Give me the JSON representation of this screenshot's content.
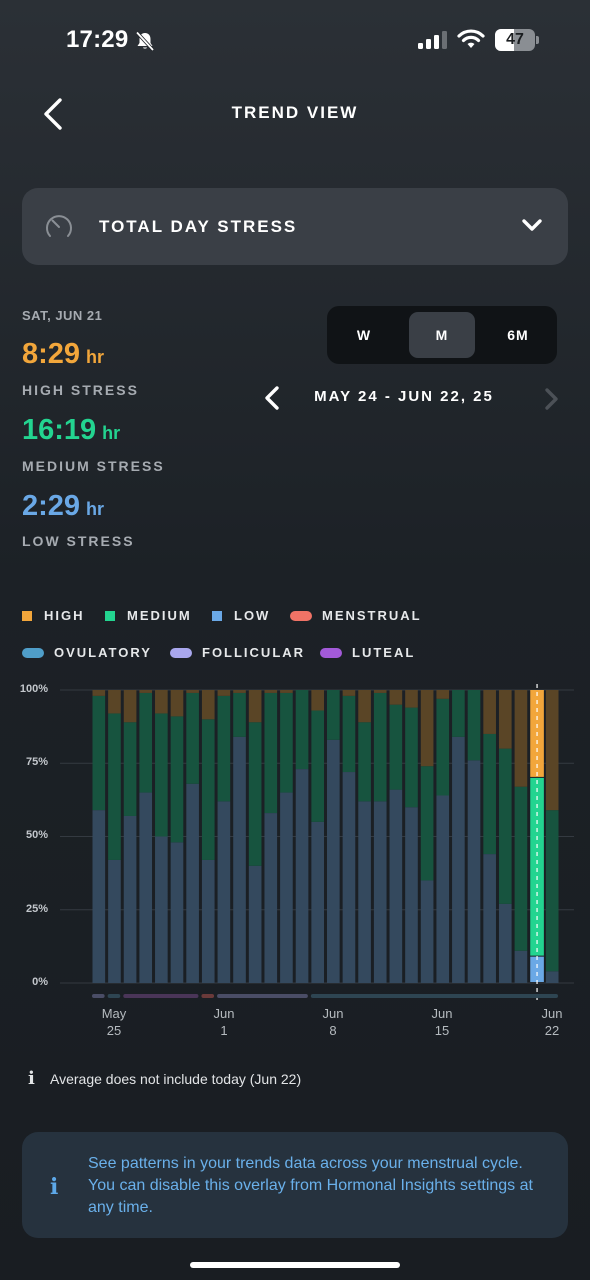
{
  "status_bar": {
    "time": "17:29",
    "battery": "47"
  },
  "header": {
    "title": "TREND VIEW"
  },
  "metric_selector": {
    "label": "TOTAL DAY STRESS"
  },
  "summary": {
    "date": "SAT, JUN 21",
    "high": {
      "value": "8:29",
      "unit": "hr",
      "label": "HIGH STRESS",
      "color": "#f2a63b"
    },
    "medium": {
      "value": "16:19",
      "unit": "hr",
      "label": "MEDIUM STRESS",
      "color": "#23d490"
    },
    "low": {
      "value": "2:29",
      "unit": "hr",
      "label": "LOW STRESS",
      "color": "#6aa8e6"
    }
  },
  "period": {
    "options": [
      "W",
      "M",
      "6M"
    ],
    "selected": "M",
    "range_label": "MAY 24 - JUN 22, 25"
  },
  "legend": {
    "stress": [
      {
        "label": "HIGH",
        "color": "#f2a63b"
      },
      {
        "label": "MEDIUM",
        "color": "#23d490"
      },
      {
        "label": "LOW",
        "color": "#6aa8e6"
      },
      {
        "label": "MENSTRUAL",
        "color": "#f07366"
      }
    ],
    "cycle": [
      {
        "label": "OVULATORY",
        "color": "#4f9ec9"
      },
      {
        "label": "FOLLICULAR",
        "color": "#a9a7ee"
      },
      {
        "label": "LUTEAL",
        "color": "#a35ad9"
      }
    ]
  },
  "chart_data": {
    "type": "bar",
    "stacked": true,
    "y_tick_labels": [
      "100%",
      "75%",
      "50%",
      "25%",
      "0%"
    ],
    "ylim": [
      0,
      100
    ],
    "x_tick_labels": [
      {
        "month": "May",
        "day": "25"
      },
      {
        "month": "Jun",
        "day": "1"
      },
      {
        "month": "Jun",
        "day": "8"
      },
      {
        "month": "Jun",
        "day": "15"
      },
      {
        "month": "Jun",
        "day": "22"
      }
    ],
    "categories": [
      "May 24",
      "May 25",
      "May 26",
      "May 27",
      "May 28",
      "May 29",
      "May 30",
      "May 31",
      "Jun 1",
      "Jun 2",
      "Jun 3",
      "Jun 4",
      "Jun 5",
      "Jun 6",
      "Jun 7",
      "Jun 8",
      "Jun 9",
      "Jun 10",
      "Jun 11",
      "Jun 12",
      "Jun 13",
      "Jun 14",
      "Jun 15",
      "Jun 16",
      "Jun 17",
      "Jun 18",
      "Jun 19",
      "Jun 20",
      "Jun 21",
      "Jun 22"
    ],
    "series": [
      {
        "name": "LOW",
        "values": [
          59,
          42,
          57,
          65,
          50,
          48,
          68,
          42,
          62,
          84,
          40,
          58,
          65,
          73,
          55,
          83,
          72,
          62,
          62,
          66,
          60,
          35,
          64,
          84,
          76,
          44,
          27,
          11,
          9,
          4
        ]
      },
      {
        "name": "MEDIUM",
        "values": [
          39,
          50,
          32,
          34,
          42,
          43,
          31,
          48,
          36,
          15,
          49,
          41,
          34,
          27,
          38,
          17,
          26,
          27,
          37,
          29,
          34,
          39,
          33,
          16,
          24,
          41,
          53,
          56,
          61,
          55
        ]
      },
      {
        "name": "HIGH",
        "values": [
          2,
          8,
          11,
          1,
          8,
          9,
          1,
          10,
          2,
          1,
          11,
          1,
          1,
          0,
          7,
          0,
          2,
          11,
          1,
          5,
          6,
          26,
          3,
          0,
          0,
          15,
          20,
          33,
          30,
          41
        ]
      }
    ],
    "selected_index": 28,
    "grid": true,
    "cycle_overlay": [
      {
        "phase": "FOLLICULAR",
        "start": 0,
        "end": 0
      },
      {
        "phase": "OVULATORY",
        "start": 1,
        "end": 1
      },
      {
        "phase": "LUTEAL",
        "start": 2,
        "end": 6
      },
      {
        "phase": "MENSTRUAL",
        "start": 7,
        "end": 7
      },
      {
        "phase": "FOLLICULAR",
        "start": 8,
        "end": 13
      },
      {
        "phase": "OVULATORY",
        "start": 14,
        "end": 14
      }
    ]
  },
  "footer": {
    "note": "Average does not include today (Jun 22)",
    "banner_text": "See patterns in your trends data across your menstrual cycle. You can disable this overlay from Hormonal Insights settings at any time."
  }
}
